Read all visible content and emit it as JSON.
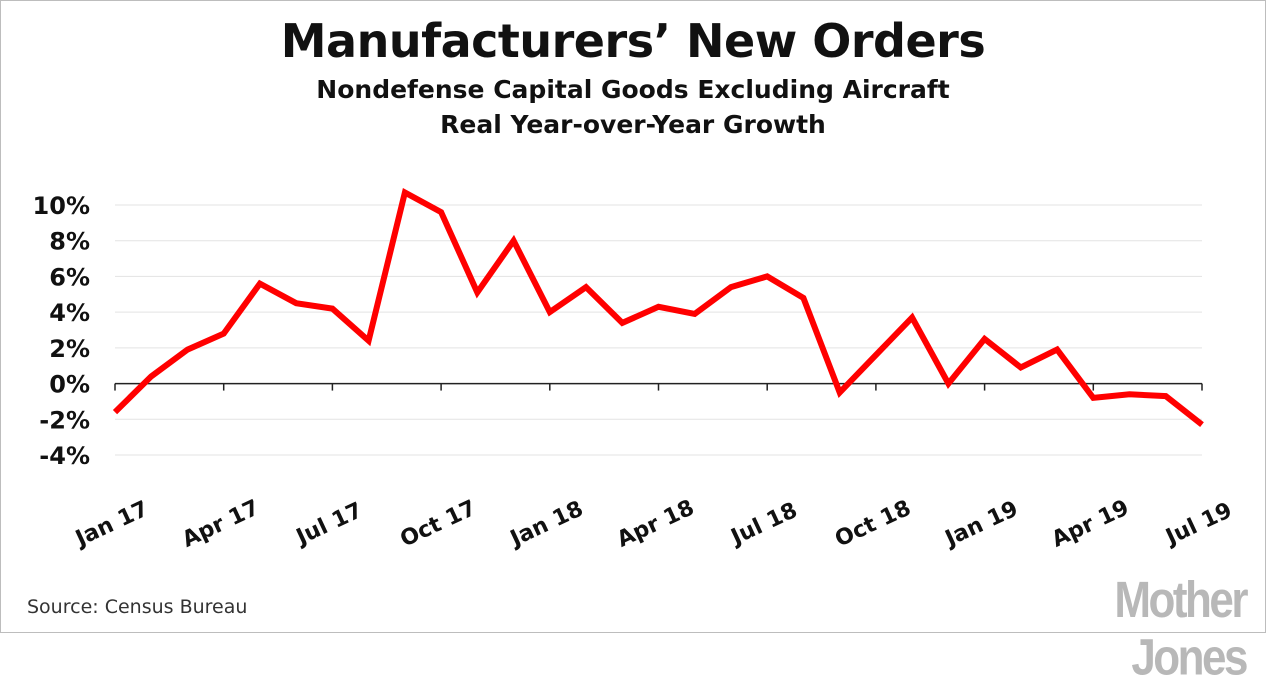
{
  "chart_data": {
    "type": "line",
    "title": "Manufacturers’ New Orders",
    "subtitle_lines": [
      "Nondefense Capital Goods Excluding Aircraft",
      "Real Year-over-Year Growth"
    ],
    "xlabel": "",
    "ylabel": "",
    "x": [
      "Jan 17",
      "Feb 17",
      "Mar 17",
      "Apr 17",
      "May 17",
      "Jun 17",
      "Jul 17",
      "Aug 17",
      "Sep 17",
      "Oct 17",
      "Nov 17",
      "Dec 17",
      "Jan 18",
      "Feb 18",
      "Mar 18",
      "Apr 18",
      "May 18",
      "Jun 18",
      "Jul 18",
      "Aug 18",
      "Sep 18",
      "Oct 18",
      "Nov 18",
      "Dec 18",
      "Jan 19",
      "Feb 19",
      "Mar 19",
      "Apr 19",
      "May 19",
      "Jun 19",
      "Jul 19"
    ],
    "x_tick_labels": [
      "Jan 17",
      "Apr 17",
      "Jul 17",
      "Oct 17",
      "Jan 18",
      "Apr 18",
      "Jul 18",
      "Oct 18",
      "Jan 19",
      "Apr 19",
      "Jul 19"
    ],
    "series": [
      {
        "name": "Real YoY growth",
        "color": "#ff0000",
        "values": [
          -1.6,
          0.4,
          1.9,
          2.8,
          5.6,
          4.5,
          4.2,
          2.4,
          10.7,
          9.6,
          5.1,
          8.0,
          4.0,
          5.4,
          3.4,
          4.3,
          3.9,
          5.4,
          6.0,
          4.8,
          -0.5,
          1.6,
          3.7,
          0.0,
          2.5,
          0.9,
          1.9,
          -0.8,
          -0.6,
          -0.7,
          -2.3
        ]
      }
    ],
    "ylim": [
      -4,
      10
    ],
    "y_ticks": [
      10,
      8,
      6,
      4,
      2,
      0,
      -2,
      -4
    ],
    "y_tick_labels": [
      "10%",
      "8%",
      "6%",
      "4%",
      "2%",
      "0%",
      "-2%",
      "-4%"
    ],
    "grid": true
  },
  "footer": {
    "source": "Source:  Census Bureau",
    "logo": "Mother Jones"
  }
}
